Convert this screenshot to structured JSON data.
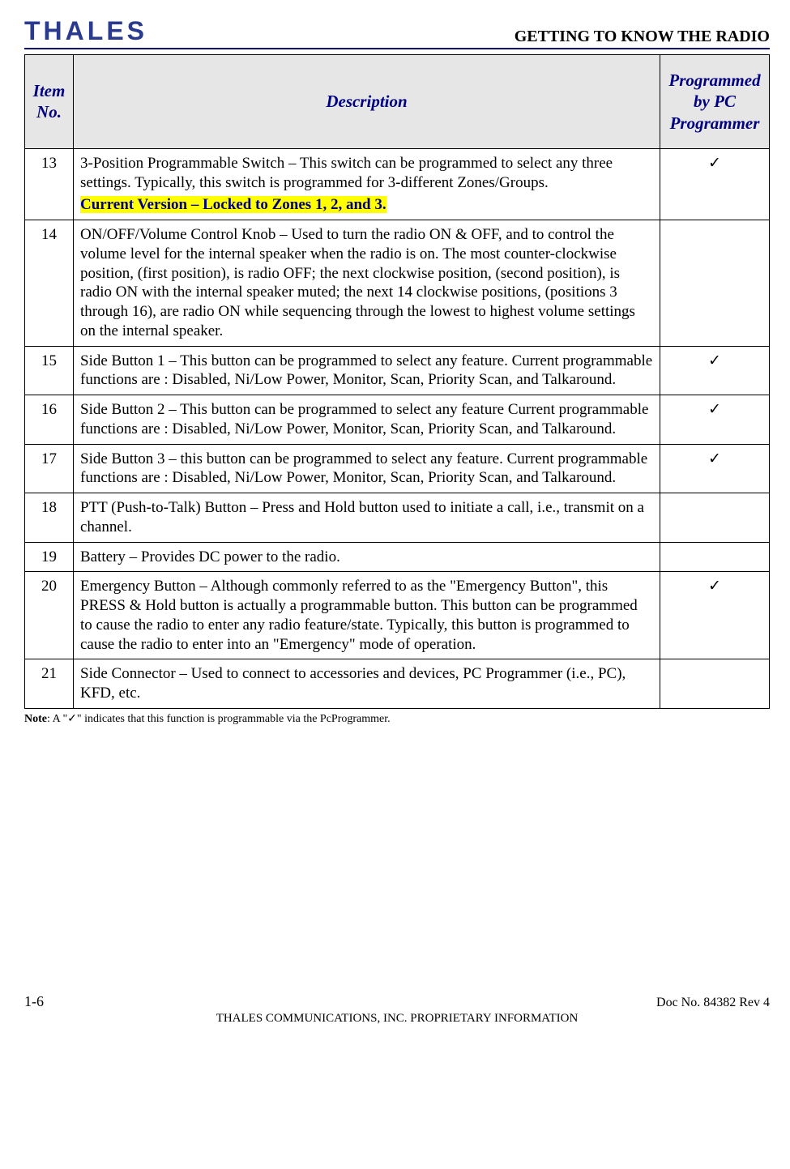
{
  "header": {
    "logo_text": "THALES",
    "section_title": "GETTING TO KNOW THE RADIO"
  },
  "table": {
    "columns": {
      "item": "Item No.",
      "desc": "Description",
      "prog": "Programmed by PC Programmer"
    },
    "header_bg": "#e6e6e6",
    "header_color": "#000080",
    "border_color": "#000000",
    "check_glyph": "✓",
    "highlight_bg": "#ffff00",
    "highlight_color": "#000080",
    "rows": [
      {
        "no": "13",
        "desc_main": "3-Position Programmable Switch – This switch can be programmed to select any three settings.  Typically, this switch is programmed for 3-different Zones/Groups.",
        "desc_highlight": "Current Version – Locked to Zones 1, 2, and 3.",
        "programmed": true
      },
      {
        "no": "14",
        "desc_main": "ON/OFF/Volume Control Knob – Used to turn the radio ON & OFF, and to control the volume level for the internal speaker when the radio is on.  The most counter-clockwise position, (first position), is radio OFF; the next clockwise position, (second position), is radio ON with the internal speaker muted; the next 14 clockwise positions, (positions 3 through 16), are radio ON while sequencing through the lowest to highest volume settings on the internal speaker.",
        "programmed": false
      },
      {
        "no": "15",
        "desc_main": "Side Button 1 – This button can be programmed to select any feature. Current programmable functions are : Disabled, Ni/Low Power, Monitor, Scan, Priority Scan, and Talkaround.",
        "programmed": true
      },
      {
        "no": "16",
        "desc_main": "Side Button 2 – This button can be programmed to select any feature Current programmable functions are : Disabled, Ni/Low Power, Monitor, Scan, Priority Scan, and Talkaround.",
        "programmed": true
      },
      {
        "no": "17",
        "desc_main": "Side Button 3 – this button can be programmed to select any feature. Current programmable functions are : Disabled, Ni/Low Power, Monitor, Scan, Priority Scan, and Talkaround.",
        "programmed": true
      },
      {
        "no": "18",
        "desc_main": "PTT (Push-to-Talk) Button – Press and Hold button used to initiate a call, i.e., transmit on a channel.",
        "programmed": false
      },
      {
        "no": "19",
        "desc_main": "Battery – Provides DC power to the radio.",
        "programmed": false
      },
      {
        "no": "20",
        "desc_main": "Emergency Button – Although commonly referred to as the \"Emergency Button\", this PRESS & Hold button is actually a programmable button. This button can be programmed to cause the radio to enter any radio feature/state. Typically, this button is programmed to cause the radio to enter into an \"Emergency\" mode of operation.",
        "programmed": true
      },
      {
        "no": "21",
        "desc_main": "Side Connector – Used to connect to accessories and devices, PC Programmer (i.e., PC), KFD, etc.",
        "programmed": false
      }
    ]
  },
  "note": {
    "label": "Note",
    "text": ": A \"✓\" indicates that this function is programmable via the PcProgrammer."
  },
  "footer": {
    "page": "1-6",
    "doc": "Doc No. 84382 Rev 4",
    "proprietary": "THALES COMMUNICATIONS, INC. PROPRIETARY INFORMATION"
  }
}
